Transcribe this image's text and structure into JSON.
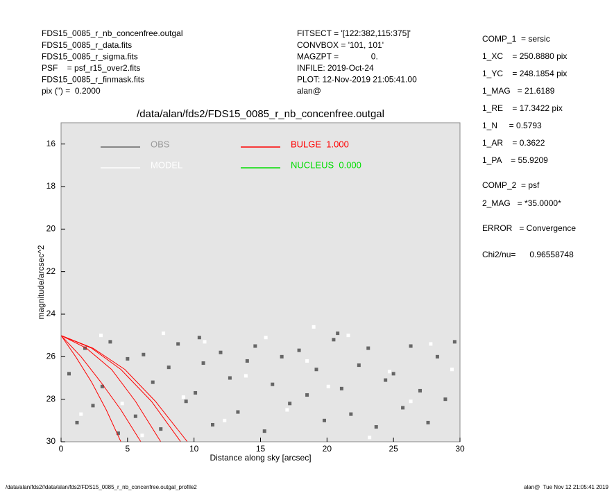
{
  "header": {
    "left": [
      "FDS15_0085_r_nb_concenfree.outgal",
      "FDS15_0085_r_data.fits",
      "FDS15_0085_r_sigma.fits",
      "PSF    = psf_r15_over2.fits",
      "FDS15_0085_r_finmask.fits",
      "pix (\") =  0.2000"
    ],
    "middle": [
      "FITSECT = '[122:382,115:375]'",
      "CONVBOX = '101, 101'",
      "MAGZPT =              0.",
      "INFILE: 2019-Oct-24",
      "PLOT: 12-Nov-2019 21:05:41.00",
      "alan@"
    ],
    "right": [
      "COMP_1  = sersic",
      "1_XC    = 250.8880 pix",
      "1_YC    = 248.1854 pix",
      "1_MAG   = 21.6189",
      "1_RE    = 17.3422 pix",
      "1_N     = 0.5793",
      "1_AR    = 0.3622",
      "1_PA    = 55.9209",
      "COMP_2  = psf",
      "2_MAG   = *35.0000*",
      "ERROR   = Convergence",
      "Chi2/nu=      0.96558748"
    ]
  },
  "footer": {
    "left": "/data/alan/fds2//data/alan/fds2/FDS15_0085_r_nb_concenfree.outgal_profile2",
    "right": "alan@  Tue Nov 12 21:05:41 2019"
  },
  "chart_data": {
    "type": "scatter",
    "title": "/data/alan/fds2/FDS15_0085_r_nb_concenfree.outgal",
    "xlabel": "Distance along sky [arcsec]",
    "ylabel": "magnitude/arcsec^2",
    "xlim": [
      0,
      30
    ],
    "ylim": [
      15,
      30
    ],
    "y_inverted": true,
    "xticks": [
      0,
      5,
      10,
      15,
      20,
      25,
      30
    ],
    "yticks": [
      16,
      18,
      20,
      22,
      24,
      26,
      28,
      30
    ],
    "grid": false,
    "series": [
      {
        "name": "OBS",
        "color": "#666666",
        "kind": "points",
        "x": [
          0.6,
          1.2,
          1.8,
          2.4,
          3.1,
          3.7,
          4.3,
          5.0,
          5.6,
          6.2,
          6.9,
          7.5,
          8.1,
          8.8,
          9.4,
          10.1,
          10.7,
          11.4,
          12.0,
          12.7,
          13.3,
          14.0,
          14.6,
          15.3,
          15.9,
          16.6,
          17.2,
          17.9,
          18.5,
          19.2,
          19.8,
          20.5,
          21.1,
          21.8,
          22.4,
          23.1,
          23.7,
          24.4,
          25.0,
          25.7,
          26.3,
          27.0,
          27.6,
          28.3,
          28.9,
          29.6,
          10.4,
          20.8
        ],
        "values": [
          26.8,
          29.1,
          25.6,
          28.3,
          27.4,
          25.3,
          29.6,
          26.1,
          28.8,
          25.9,
          27.2,
          29.4,
          26.5,
          25.4,
          28.1,
          27.7,
          26.3,
          29.2,
          25.8,
          27.0,
          28.6,
          26.2,
          25.5,
          29.5,
          27.3,
          26.0,
          28.2,
          25.7,
          27.8,
          26.6,
          29.0,
          25.2,
          27.5,
          28.7,
          26.4,
          25.6,
          29.3,
          27.1,
          26.8,
          28.4,
          25.5,
          27.6,
          29.1,
          26.0,
          28.0,
          25.3,
          25.1,
          24.9
        ]
      },
      {
        "name": "MODEL",
        "color": "#ffffff",
        "kind": "points",
        "x": [
          1.5,
          3.0,
          4.6,
          6.1,
          7.7,
          9.2,
          10.8,
          12.3,
          13.9,
          15.4,
          17.0,
          18.5,
          20.1,
          21.6,
          23.2,
          24.7,
          26.3,
          27.8,
          29.4,
          19.0
        ],
        "values": [
          28.7,
          25.0,
          28.2,
          29.7,
          24.9,
          27.9,
          25.3,
          29.0,
          26.9,
          25.1,
          28.5,
          26.2,
          27.4,
          25.0,
          29.8,
          26.7,
          28.1,
          25.4,
          26.6,
          24.6
        ]
      },
      {
        "name": "BULGE  1.000",
        "color": "#ff0000",
        "kind": "line",
        "x": [
          0,
          1.1,
          2.3,
          3.4,
          4.5,
          null,
          0,
          1.5,
          3,
          4.5,
          6,
          null,
          0,
          1.9,
          3.8,
          5.6,
          7.5,
          null,
          0,
          2.3,
          4.5,
          6.8,
          9,
          null,
          0,
          2.4,
          4.8,
          7.1,
          9.5
        ],
        "values": [
          25,
          26.0,
          27.2,
          28.5,
          30,
          null,
          25,
          26.0,
          27.2,
          28.5,
          30,
          null,
          25,
          25.6,
          26.6,
          28.1,
          30,
          null,
          25,
          25.6,
          26.6,
          28.1,
          30,
          null,
          25,
          25.6,
          26.6,
          28.1,
          30
        ]
      },
      {
        "name": "NUCLEUS  0.000",
        "color": "#00dd00",
        "kind": "line",
        "x": [],
        "values": []
      }
    ]
  }
}
